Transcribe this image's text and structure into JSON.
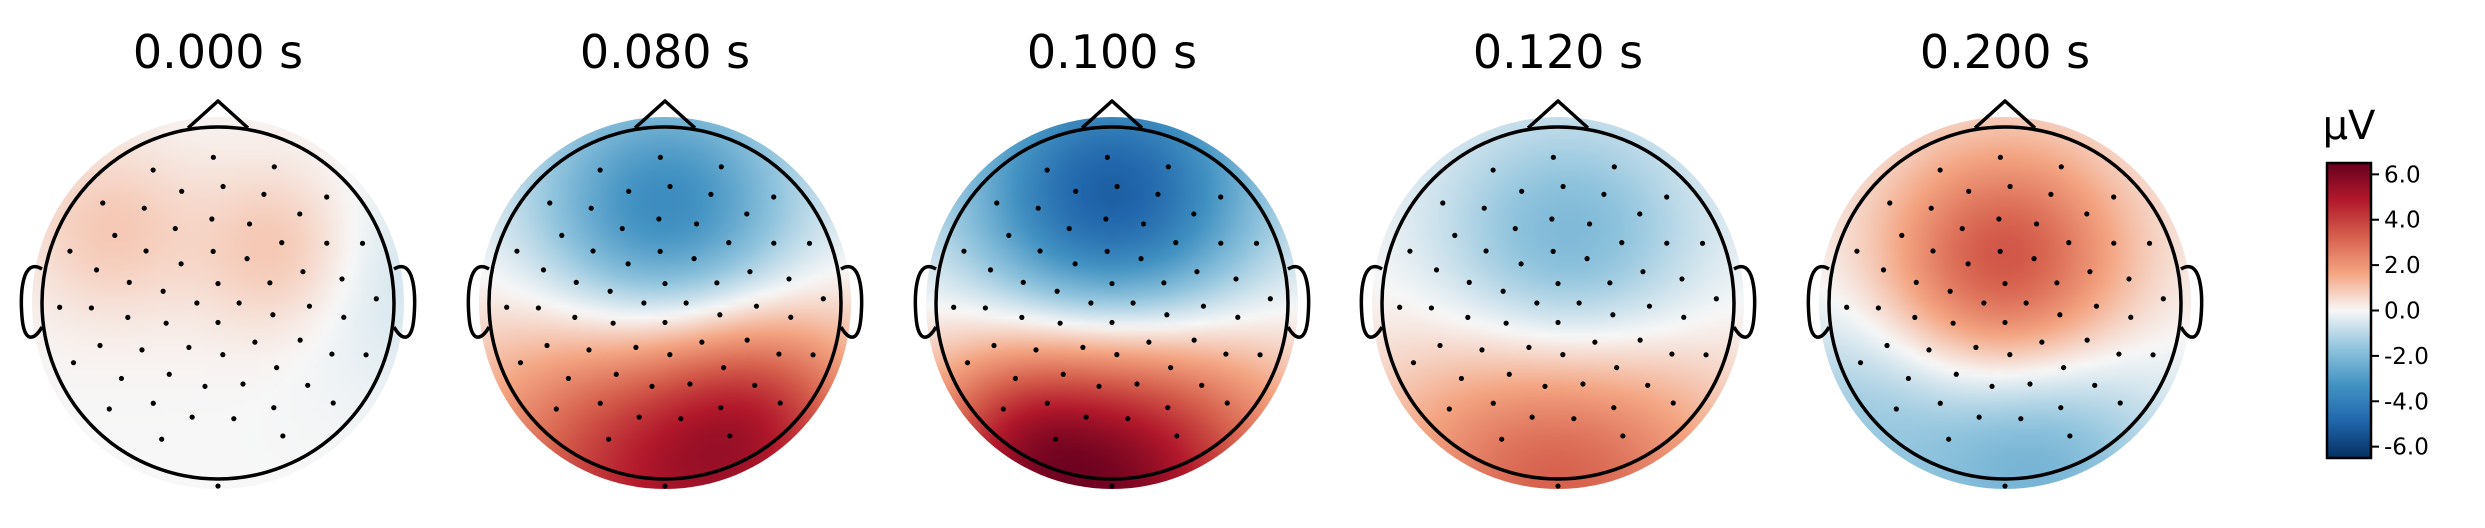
{
  "chart_data": {
    "type": "heatmap",
    "title": "",
    "colormap": "RdBu_r",
    "vmin": -6.5,
    "vmax": 6.5,
    "colorbar": {
      "unit_label": "µV",
      "ticks": [
        6.0,
        4.0,
        2.0,
        0.0,
        -2.0,
        -4.0,
        -6.0
      ],
      "tick_labels": [
        "6.0",
        "4.0",
        "2.0",
        "0.0",
        "-2.0",
        "-4.0",
        "-6.0"
      ]
    },
    "panels": [
      {
        "time_label": "0.000 s",
        "components": [
          {
            "x": 0.38,
            "y": 0.3,
            "amplitude": 1.2,
            "spread": 0.35
          },
          {
            "x": -0.62,
            "y": 0.42,
            "amplitude": 0.9,
            "spread": 0.35
          },
          {
            "x": 0.9,
            "y": 0.2,
            "amplitude": -0.7,
            "spread": 0.45
          }
        ]
      },
      {
        "time_label": "0.080 s",
        "components": [
          {
            "x": 0.0,
            "y": 0.45,
            "amplitude": -4.2,
            "spread": 0.55
          },
          {
            "x": 0.0,
            "y": -0.95,
            "amplitude": 4.8,
            "spread": 0.75
          },
          {
            "x": 0.55,
            "y": -0.65,
            "amplitude": 1.8,
            "spread": 0.4
          }
        ]
      },
      {
        "time_label": "0.100 s",
        "components": [
          {
            "x": 0.0,
            "y": 0.55,
            "amplitude": -5.5,
            "spread": 0.6
          },
          {
            "x": 0.0,
            "y": -1.0,
            "amplitude": 6.0,
            "spread": 0.7
          },
          {
            "x": -0.55,
            "y": -0.8,
            "amplitude": 1.5,
            "spread": 0.35
          }
        ]
      },
      {
        "time_label": "0.120 s",
        "components": [
          {
            "x": 0.05,
            "y": 0.25,
            "amplitude": -2.6,
            "spread": 0.55
          },
          {
            "x": 0.0,
            "y": -0.95,
            "amplitude": 3.4,
            "spread": 0.7
          }
        ]
      },
      {
        "time_label": "0.200 s",
        "components": [
          {
            "x": 0.0,
            "y": 0.2,
            "amplitude": 3.8,
            "spread": 0.5
          },
          {
            "x": 0.15,
            "y": -0.85,
            "amplitude": -2.4,
            "spread": 0.55
          },
          {
            "x": -0.9,
            "y": -0.6,
            "amplitude": -1.2,
            "spread": 0.45
          }
        ]
      }
    ]
  }
}
